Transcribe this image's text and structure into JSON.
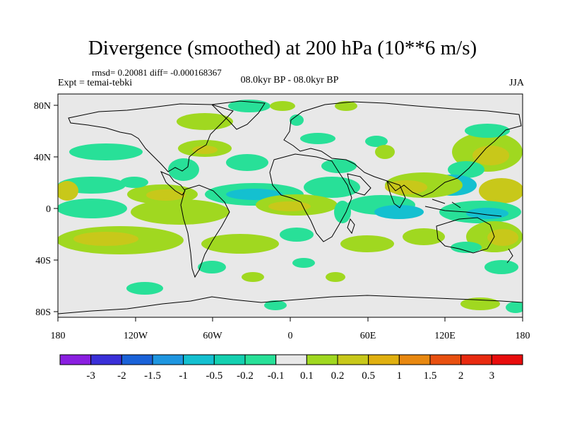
{
  "title": "Divergence (smoothed) at 200 hPa (10**6 m/s)",
  "stats_text": "rmsd= 0.20081 diff= -0.000168367",
  "experiment_text": "Expt = temai-tebki",
  "period_text": "08.0kyr BP - 08.0kyr BP",
  "season_text": "JJA",
  "y_axis": {
    "ticks": [
      "80N",
      "40N",
      "0",
      "40S",
      "80S"
    ]
  },
  "x_axis": {
    "ticks": [
      "180",
      "120W",
      "60W",
      "0",
      "60E",
      "120E",
      "180"
    ]
  },
  "colorbar": {
    "labels": [
      "-3",
      "-2",
      "-1.5",
      "-1",
      "-0.5",
      "-0.2",
      "-0.1",
      "0.1",
      "0.2",
      "0.5",
      "1",
      "1.5",
      "2",
      "3"
    ],
    "colors": [
      "#8a1fe0",
      "#3a2fd8",
      "#1a62d8",
      "#1e96e0",
      "#14c0d0",
      "#14d0b0",
      "#28e098",
      "#e8e8e8",
      "#a0d820",
      "#c8c81a",
      "#e0b010",
      "#e88810",
      "#e85010",
      "#e82a10",
      "#e80c0c"
    ]
  },
  "palette": {
    "neutral": "#e8e8e8",
    "pos_light": "#a0d820",
    "pos_mid": "#c8c81a",
    "pos_strong": "#e0b010",
    "pos_orange": "#e88810",
    "neg_light": "#28e098",
    "neg_mid": "#14c0d0",
    "neg_strong": "#1e96e0"
  }
}
